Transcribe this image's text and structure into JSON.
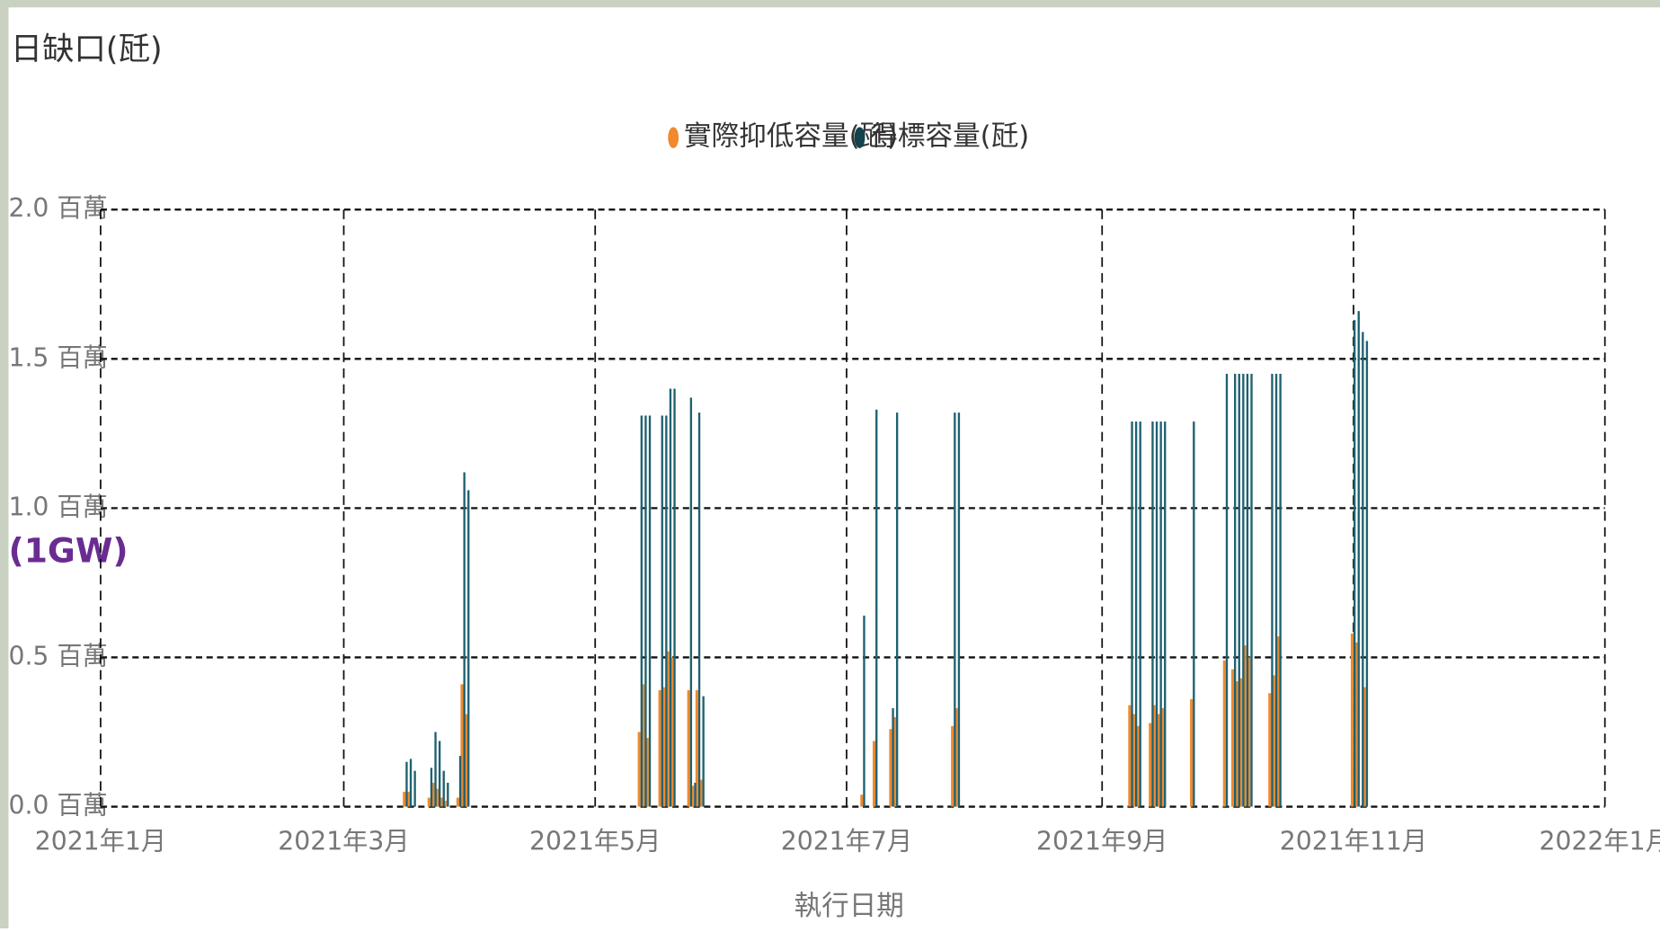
{
  "chart_data": {
    "type": "bar",
    "title": "日缺口(瓩)",
    "x_label": "執行日期",
    "annotation": "(1GW)",
    "grid": true,
    "legend": "top",
    "x": [
      74,
      75,
      76,
      80,
      81,
      82,
      83,
      84,
      87,
      88,
      89,
      131,
      132,
      133,
      136,
      137,
      138,
      139,
      143,
      144,
      145,
      146,
      185,
      188,
      192,
      193,
      207,
      208,
      250,
      251,
      252,
      255,
      256,
      257,
      258,
      265,
      273,
      275,
      276,
      277,
      278,
      279,
      284,
      285,
      286,
      304,
      305,
      306,
      307
    ],
    "series": [
      {
        "name": "實際抑低容量(瓩)",
        "color": "#ef8a2e",
        "values": [
          50000,
          50000,
          0,
          30000,
          80000,
          60000,
          30000,
          20000,
          30000,
          410000,
          310000,
          250000,
          410000,
          230000,
          390000,
          400000,
          520000,
          500000,
          390000,
          70000,
          390000,
          90000,
          40000,
          220000,
          260000,
          300000,
          270000,
          330000,
          340000,
          310000,
          270000,
          280000,
          340000,
          310000,
          330000,
          360000,
          490000,
          460000,
          420000,
          430000,
          540000,
          500000,
          380000,
          440000,
          570000,
          580000,
          550000,
          0,
          400000
        ]
      },
      {
        "name": "得標容量(瓩)",
        "color": "#1f6170",
        "values": [
          150000,
          160000,
          120000,
          130000,
          250000,
          220000,
          120000,
          80000,
          170000,
          1120000,
          1060000,
          1310000,
          1310000,
          1310000,
          1310000,
          1310000,
          1400000,
          1400000,
          1370000,
          80000,
          1320000,
          370000,
          640000,
          1330000,
          330000,
          1320000,
          1320000,
          1320000,
          1290000,
          1290000,
          1290000,
          1290000,
          1290000,
          1290000,
          1290000,
          1290000,
          1450000,
          1450000,
          1450000,
          1450000,
          1450000,
          1450000,
          1450000,
          1450000,
          1450000,
          1630000,
          1660000,
          1590000,
          1560000
        ]
      }
    ],
    "xlim": [
      0,
      365
    ],
    "xticks": [
      {
        "value": 0,
        "label": "2021年1月"
      },
      {
        "value": 59,
        "label": "2021年3月"
      },
      {
        "value": 120,
        "label": "2021年5月"
      },
      {
        "value": 181,
        "label": "2021年7月"
      },
      {
        "value": 243,
        "label": "2021年9月"
      },
      {
        "value": 304,
        "label": "2021年11月"
      },
      {
        "value": 365,
        "label": "2022年1月"
      }
    ],
    "ylim": [
      0,
      2000000
    ],
    "yticks": [
      {
        "value": 0,
        "label": "0.0 百萬"
      },
      {
        "value": 500000,
        "label": "0.5 百萬"
      },
      {
        "value": 1000000,
        "label": "1.0 百萬"
      },
      {
        "value": 1500000,
        "label": "1.5 百萬"
      },
      {
        "value": 2000000,
        "label": "2.0 百萬"
      }
    ]
  }
}
